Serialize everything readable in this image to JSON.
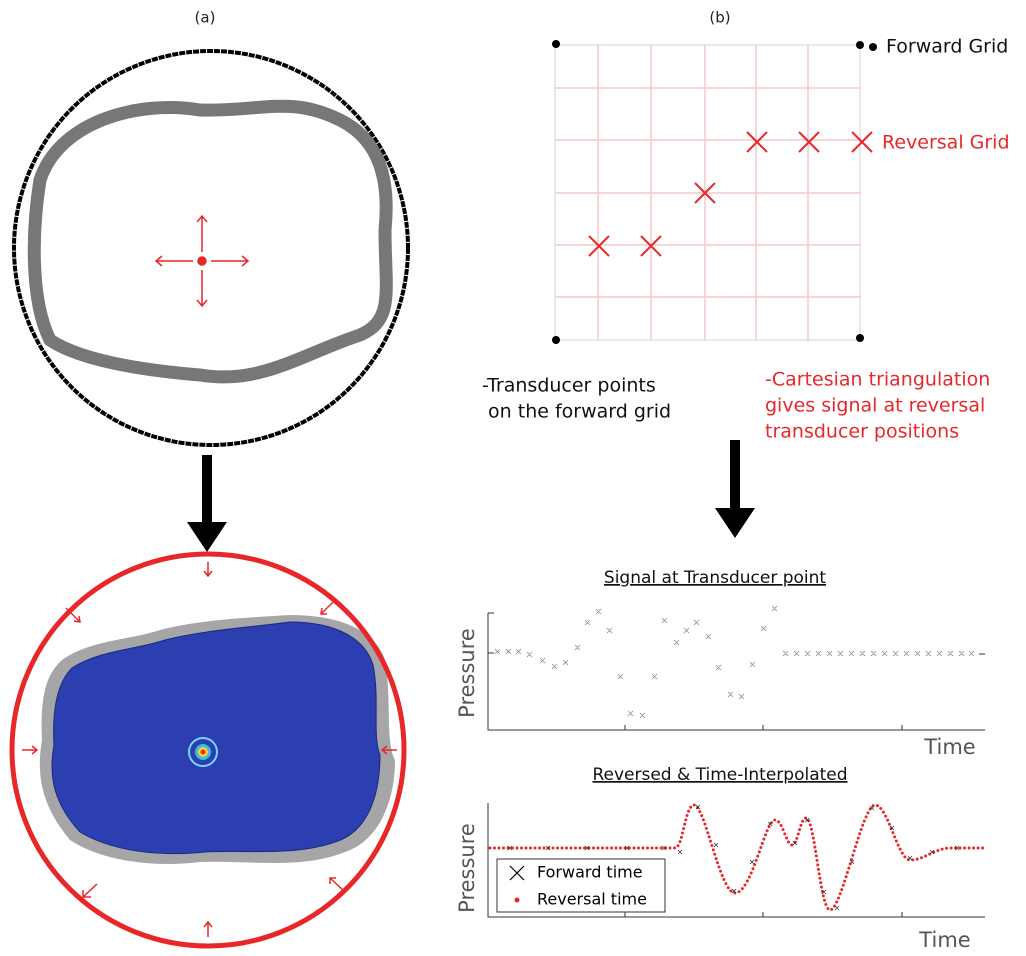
{
  "labels": {
    "a": "(a)",
    "b": "(b)"
  },
  "grid": {
    "forward": "Forward Grid",
    "reversal": "Reversal Grid"
  },
  "notes": {
    "forward": [
      "-Transducer points",
      " on the forward grid"
    ],
    "reversal": [
      "-Cartesian triangulation",
      "gives signal at reversal",
      "transducer positions"
    ]
  },
  "plots": [
    {
      "title": "Signal at Transducer point",
      "ylabel": "Pressure",
      "xlabel": "Time"
    },
    {
      "title": "Reversed & Time-Interpolated",
      "ylabel": "Pressure",
      "xlabel": "Time",
      "legend": [
        "Forward time",
        "Reversal time"
      ]
    }
  ]
}
